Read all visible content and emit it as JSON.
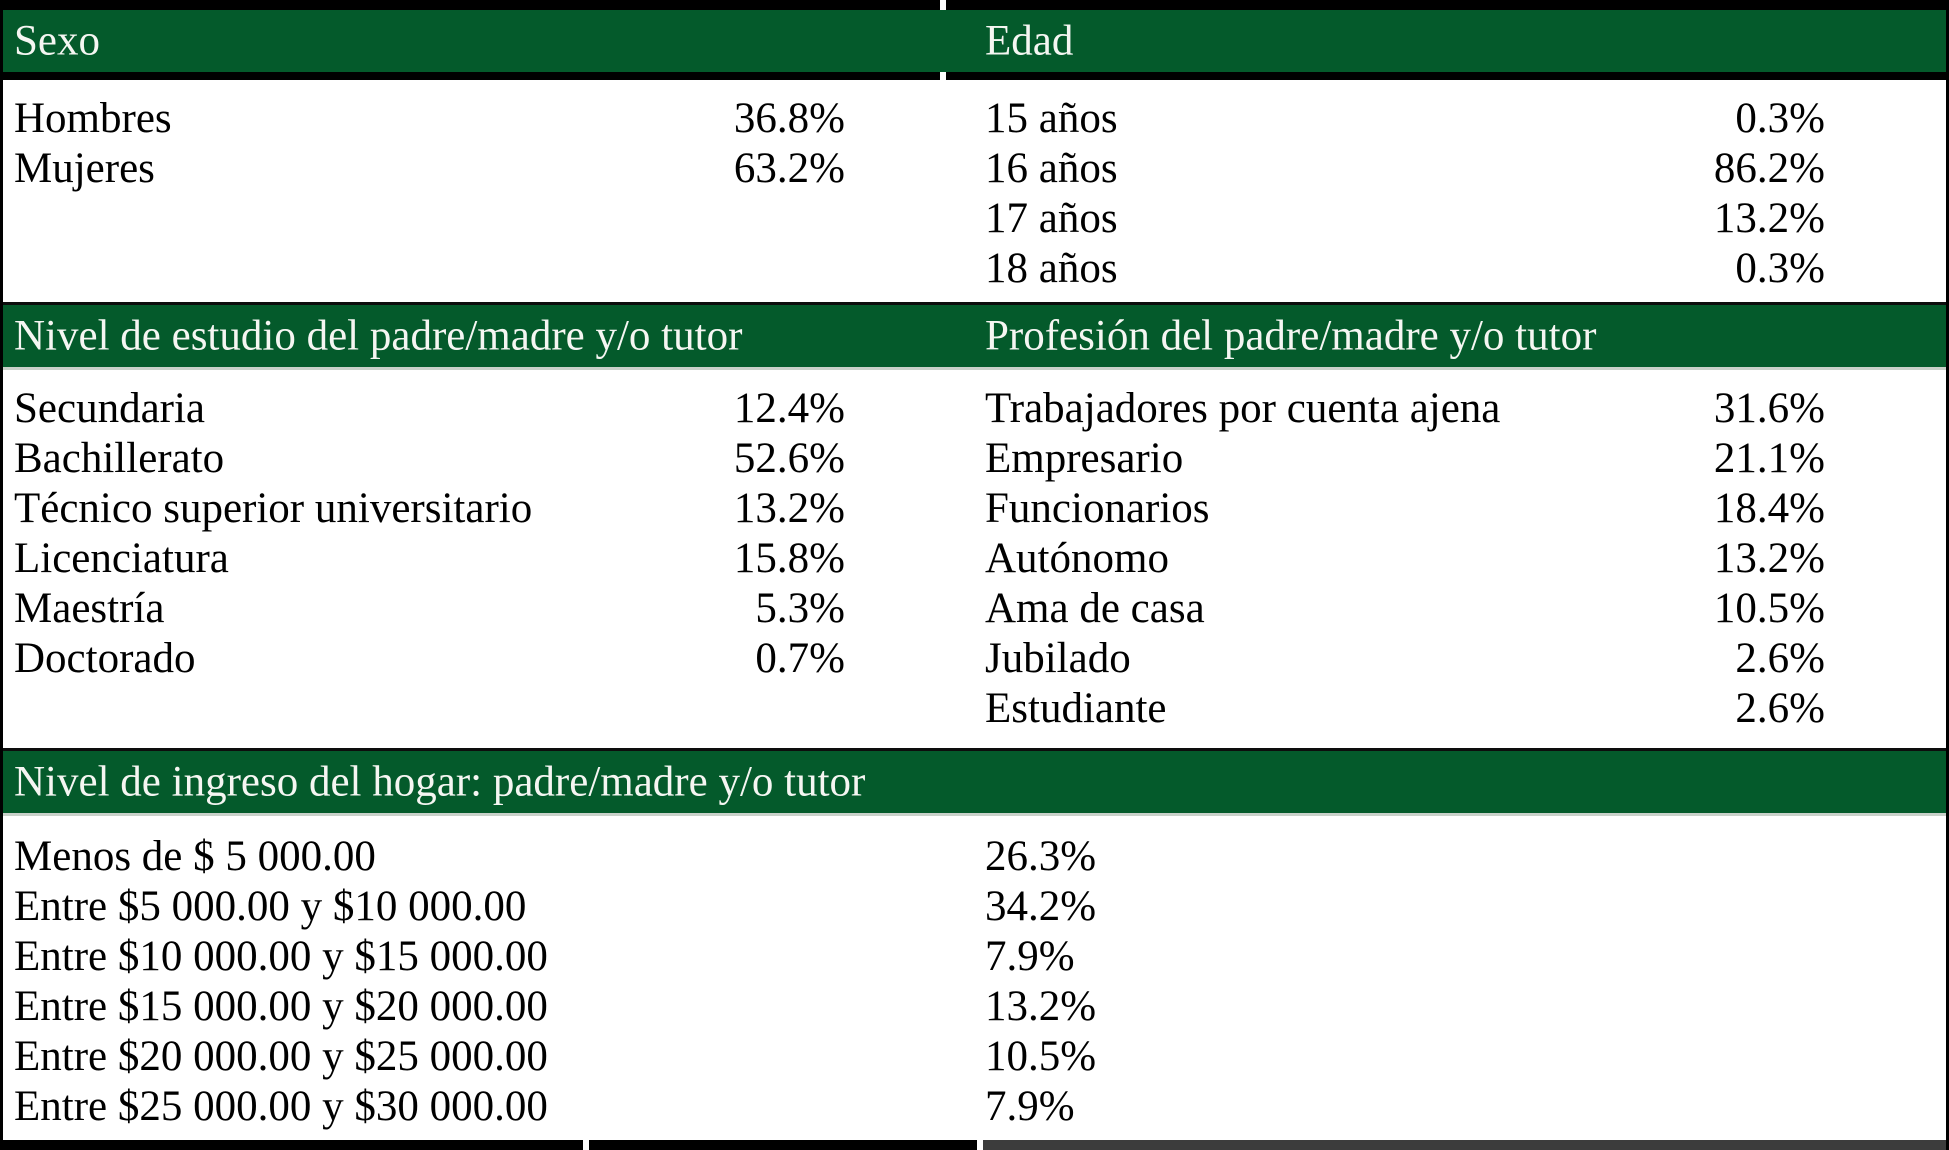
{
  "colors": {
    "header_green": "#045a2b",
    "header_text": "#f5f6f2",
    "body_text": "#000000",
    "border": "#000000"
  },
  "sections": [
    {
      "left": {
        "header": "Sexo",
        "rows": [
          {
            "label": "Hombres",
            "value": "36.8%"
          },
          {
            "label": "Mujeres",
            "value": "63.2%"
          }
        ]
      },
      "right": {
        "header": "Edad",
        "rows": [
          {
            "label": "15 años",
            "value": "0.3%"
          },
          {
            "label": "16 años",
            "value": "86.2%"
          },
          {
            "label": "17 años",
            "value": "13.2%"
          },
          {
            "label": "18 años",
            "value": "0.3%"
          }
        ]
      }
    },
    {
      "left": {
        "header": "Nivel de estudio del padre/madre y/o tutor",
        "rows": [
          {
            "label": "Secundaria",
            "value": "12.4%"
          },
          {
            "label": "Bachillerato",
            "value": "52.6%"
          },
          {
            "label": "Técnico superior universitario",
            "value": "13.2%"
          },
          {
            "label": "Licenciatura",
            "value": "15.8%"
          },
          {
            "label": "Maestría",
            "value": "5.3%"
          },
          {
            "label": "Doctorado",
            "value": "0.7%"
          }
        ]
      },
      "right": {
        "header": "Profesión del padre/madre y/o tutor",
        "rows": [
          {
            "label": "Trabajadores por cuenta ajena",
            "value": "31.6%"
          },
          {
            "label": "Empresario",
            "value": "21.1%"
          },
          {
            "label": "Funcionarios",
            "value": "18.4%"
          },
          {
            "label": "Autónomo",
            "value": "13.2%"
          },
          {
            "label": "Ama de casa",
            "value": "10.5%"
          },
          {
            "label": "Jubilado",
            "value": "2.6%"
          },
          {
            "label": "Estudiante",
            "value": "2.6%"
          }
        ]
      }
    },
    {
      "full": {
        "header": "Nivel de ingreso del hogar: padre/madre y/o tutor",
        "rows": [
          {
            "label": "Menos de $ 5 000.00",
            "value": "26.3%"
          },
          {
            "label": "Entre $5 000.00 y $10 000.00",
            "value": "34.2%"
          },
          {
            "label": "Entre $10 000.00 y $15 000.00",
            "value": "7.9%"
          },
          {
            "label": "Entre $15 000.00 y $20 000.00",
            "value": "13.2%"
          },
          {
            "label": "Entre $20 000.00 y $25 000.00",
            "value": "10.5%"
          },
          {
            "label": "Entre $25 000.00 y $30 000.00",
            "value": "7.9%"
          }
        ]
      }
    }
  ]
}
